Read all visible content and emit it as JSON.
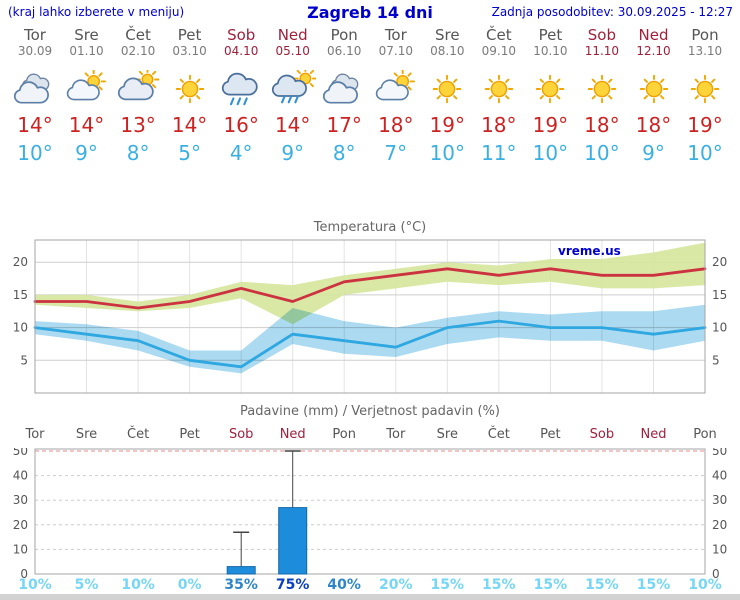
{
  "header": {
    "note": "(kraj lahko izberete v meniju)",
    "title": "Zagreb 14 dni",
    "updated": "Zadnja posodobitev: 30.09.2025 - 12:27"
  },
  "colors": {
    "header_blue": "#0000cc",
    "weekday_text": "#555555",
    "weekend_text": "#a0203c",
    "tmax_text": "#cc2222",
    "tmin_text": "#3ab0e2",
    "tmax_line": "#cc3340",
    "tmax_band": "#d6e69c",
    "tmin_line": "#2fa7e0",
    "tmin_band": "#a3d7ef",
    "bar_fill": "#1d8ddb",
    "prob_low": "#76d6f5",
    "prob_med": "#2e86c8",
    "prob_high": "#0a3fc0",
    "watermark_blue": "#0000cc"
  },
  "days": [
    {
      "name": "Tor",
      "date": "30.09",
      "weekend": false,
      "icon": "cloudy",
      "tmax_label": "14°",
      "tmin_label": "10°",
      "prob_label": "10%"
    },
    {
      "name": "Sre",
      "date": "01.10",
      "weekend": false,
      "icon": "partly-cloudy",
      "tmax_label": "14°",
      "tmin_label": "9°",
      "prob_label": "5%"
    },
    {
      "name": "Čet",
      "date": "02.10",
      "weekend": false,
      "icon": "mostly-cloudy",
      "tmax_label": "13°",
      "tmin_label": "8°",
      "prob_label": "10%"
    },
    {
      "name": "Pet",
      "date": "03.10",
      "weekend": false,
      "icon": "sunny",
      "tmax_label": "14°",
      "tmin_label": "5°",
      "prob_label": "0%"
    },
    {
      "name": "Sob",
      "date": "04.10",
      "weekend": true,
      "icon": "rain",
      "tmax_label": "16°",
      "tmin_label": "4°",
      "prob_label": "35%"
    },
    {
      "name": "Ned",
      "date": "05.10",
      "weekend": true,
      "icon": "rain-sun",
      "tmax_label": "14°",
      "tmin_label": "9°",
      "prob_label": "75%"
    },
    {
      "name": "Pon",
      "date": "06.10",
      "weekend": false,
      "icon": "cloudy",
      "tmax_label": "17°",
      "tmin_label": "8°",
      "prob_label": "40%"
    },
    {
      "name": "Tor",
      "date": "07.10",
      "weekend": false,
      "icon": "partly-cloudy",
      "tmax_label": "18°",
      "tmin_label": "7°",
      "prob_label": "20%"
    },
    {
      "name": "Sre",
      "date": "08.10",
      "weekend": false,
      "icon": "sunny",
      "tmax_label": "19°",
      "tmin_label": "10°",
      "prob_label": "15%"
    },
    {
      "name": "Čet",
      "date": "09.10",
      "weekend": false,
      "icon": "sunny",
      "tmax_label": "18°",
      "tmin_label": "11°",
      "prob_label": "15%"
    },
    {
      "name": "Pet",
      "date": "10.10",
      "weekend": false,
      "icon": "sunny",
      "tmax_label": "19°",
      "tmin_label": "10°",
      "prob_label": "15%"
    },
    {
      "name": "Sob",
      "date": "11.10",
      "weekend": true,
      "icon": "sunny",
      "tmax_label": "18°",
      "tmin_label": "10°",
      "prob_label": "15%"
    },
    {
      "name": "Ned",
      "date": "12.10",
      "weekend": true,
      "icon": "sunny",
      "tmax_label": "18°",
      "tmin_label": "9°",
      "prob_label": "15%"
    },
    {
      "name": "Pon",
      "date": "13.10",
      "weekend": false,
      "icon": "sunny",
      "tmax_label": "19°",
      "tmin_label": "10°",
      "prob_label": "10%"
    }
  ],
  "chart_data": [
    {
      "type": "line",
      "title": "Temperatura (°C)",
      "watermark": "vreme.us",
      "x_labels": [
        "Tor 30.09",
        "Sre 01.10",
        "Čet 02.10",
        "Pet 03.10",
        "Sob 04.10",
        "Ned 05.10",
        "Pon 06.10",
        "Tor 07.10",
        "Sre 08.10",
        "Čet 09.10",
        "Pet 10.10",
        "Sob 11.10",
        "Ned 12.10",
        "Pon 13.10"
      ],
      "y_ticks": [
        5,
        10,
        15,
        20
      ],
      "ylim": [
        0,
        23.4
      ],
      "grid": true,
      "legend_position": "none",
      "series": [
        {
          "name": "max-temp",
          "values": [
            14,
            14,
            13,
            14,
            16,
            14,
            17,
            18,
            19,
            18,
            19,
            18,
            18,
            19
          ]
        },
        {
          "name": "min-temp",
          "values": [
            10,
            9,
            8,
            5,
            4,
            9,
            8,
            7,
            10,
            11,
            10,
            10,
            9,
            10
          ]
        },
        {
          "name": "max-temp-range-high",
          "values": [
            15,
            15,
            14,
            15,
            17,
            16.5,
            18,
            19,
            20,
            19.5,
            20.5,
            20.5,
            21.5,
            23
          ]
        },
        {
          "name": "max-temp-range-low",
          "values": [
            13.5,
            13,
            12.5,
            13,
            14.5,
            10.5,
            15,
            16,
            17,
            16.5,
            17,
            16,
            16,
            16.5
          ]
        },
        {
          "name": "min-temp-range-high",
          "values": [
            11,
            10.5,
            9.5,
            6.5,
            6.5,
            13,
            11,
            10,
            11.5,
            12.5,
            12,
            12.5,
            12.5,
            13.5
          ]
        },
        {
          "name": "min-temp-range-low",
          "values": [
            9,
            8,
            6.5,
            4,
            3,
            7.5,
            6,
            5.5,
            7.5,
            8.5,
            8,
            8,
            6.5,
            8
          ]
        }
      ]
    },
    {
      "type": "bar",
      "title": "Padavine (mm) / Verjetnost padavin (%)",
      "categories": [
        "Tor",
        "Sre",
        "Čet",
        "Pet",
        "Sob",
        "Ned",
        "Pon",
        "Tor",
        "Sre",
        "Čet",
        "Pet",
        "Sob",
        "Ned",
        "Pon"
      ],
      "weekend_flags": [
        false,
        false,
        false,
        false,
        true,
        true,
        false,
        false,
        false,
        false,
        false,
        true,
        true,
        false
      ],
      "values": [
        0,
        0,
        0,
        0,
        3,
        27,
        0,
        0,
        0,
        0,
        0,
        0,
        0,
        0
      ],
      "whisker_max": [
        0,
        0,
        0,
        0,
        17,
        50,
        0,
        0,
        0,
        0,
        0,
        0,
        0,
        0
      ],
      "probabilities_pct": [
        10,
        5,
        10,
        0,
        35,
        75,
        40,
        20,
        15,
        15,
        15,
        15,
        15,
        10
      ],
      "y_ticks": [
        0,
        10,
        20,
        30,
        40,
        50
      ],
      "ylim": [
        0,
        50
      ],
      "grid": true
    }
  ]
}
